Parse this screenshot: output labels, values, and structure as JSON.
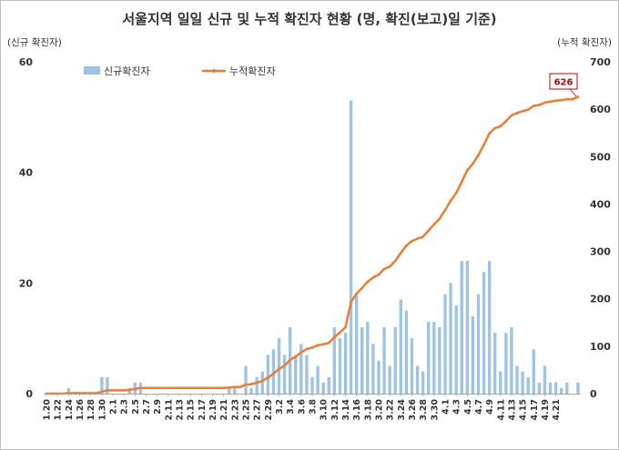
{
  "chart_data": {
    "type": "bar+line",
    "title": "서울지역 일일 신규 및 누적 확진자 현황 (명, 확진(보고)일 기준)",
    "left_axis_label": "(신규 확진자)",
    "right_axis_label": "(누적 확진자)",
    "left_ylim": [
      0,
      60
    ],
    "left_ticks": [
      0,
      20,
      40,
      60
    ],
    "right_ylim": [
      0,
      700
    ],
    "right_ticks": [
      0,
      100,
      200,
      300,
      400,
      500,
      600,
      700
    ],
    "x_labels": [
      "1.20",
      "1.22",
      "1.24",
      "1.26",
      "1.28",
      "1.30",
      "2.1",
      "2.3",
      "2.5",
      "2.7",
      "2.9",
      "2.11",
      "2.13",
      "2.15",
      "2.17",
      "2.19",
      "2.21",
      "2.23",
      "2.25",
      "2.27",
      "2.29",
      "3.2",
      "3.4",
      "3.6",
      "3.8",
      "3.10",
      "3.12",
      "3.14",
      "3.16",
      "3.18",
      "3.20",
      "3.22",
      "3.24",
      "3.26",
      "3.28",
      "3.30",
      "4.1",
      "4.3",
      "4.5",
      "4.7",
      "4.9",
      "4.11",
      "4.13",
      "4.15",
      "4.17",
      "4.19",
      "4.21"
    ],
    "legend_position": "top-left",
    "series": [
      {
        "name": "신규확진자",
        "type": "bar",
        "axis": "left",
        "color": "#9dc3e6",
        "values": [
          0,
          0,
          0,
          0,
          1,
          0,
          0,
          0,
          0,
          0,
          3,
          3,
          0,
          0,
          0,
          1,
          2,
          2,
          0,
          0,
          0,
          0,
          0,
          0,
          0,
          0,
          0,
          0,
          0,
          0,
          0,
          0,
          0,
          1,
          1,
          0,
          5,
          1,
          3,
          4,
          7,
          8,
          10,
          7,
          12,
          7,
          9,
          7,
          3,
          5,
          2,
          3,
          12,
          10,
          11,
          53,
          18,
          12,
          13,
          9,
          6,
          12,
          5,
          12,
          17,
          15,
          10,
          5,
          4,
          13,
          13,
          12,
          18,
          20,
          16,
          24,
          24,
          14,
          18,
          22,
          24,
          11,
          4,
          11,
          12,
          5,
          4,
          3,
          8,
          2,
          5,
          2,
          2,
          1,
          2,
          0,
          2
        ]
      },
      {
        "name": "누적확진자",
        "type": "line",
        "axis": "right",
        "color": "#ed7d31",
        "values": [
          0,
          0,
          0,
          0,
          1,
          1,
          1,
          1,
          1,
          1,
          4,
          7,
          7,
          7,
          7,
          8,
          10,
          12,
          12,
          12,
          12,
          12,
          12,
          12,
          12,
          12,
          12,
          12,
          12,
          12,
          12,
          12,
          12,
          13,
          14,
          14,
          19,
          20,
          23,
          27,
          34,
          42,
          52,
          59,
          71,
          78,
          87,
          94,
          97,
          102,
          104,
          107,
          119,
          129,
          140,
          193,
          211,
          223,
          236,
          245,
          251,
          263,
          268,
          280,
          297,
          312,
          322,
          327,
          331,
          344,
          357,
          369,
          387,
          407,
          423,
          447,
          471,
          485,
          503,
          525,
          549,
          560,
          564,
          575,
          587,
          592,
          596,
          599,
          607,
          609,
          614,
          616,
          618,
          619,
          621,
          621,
          626
        ]
      }
    ],
    "annotation": {
      "text": "626"
    }
  }
}
